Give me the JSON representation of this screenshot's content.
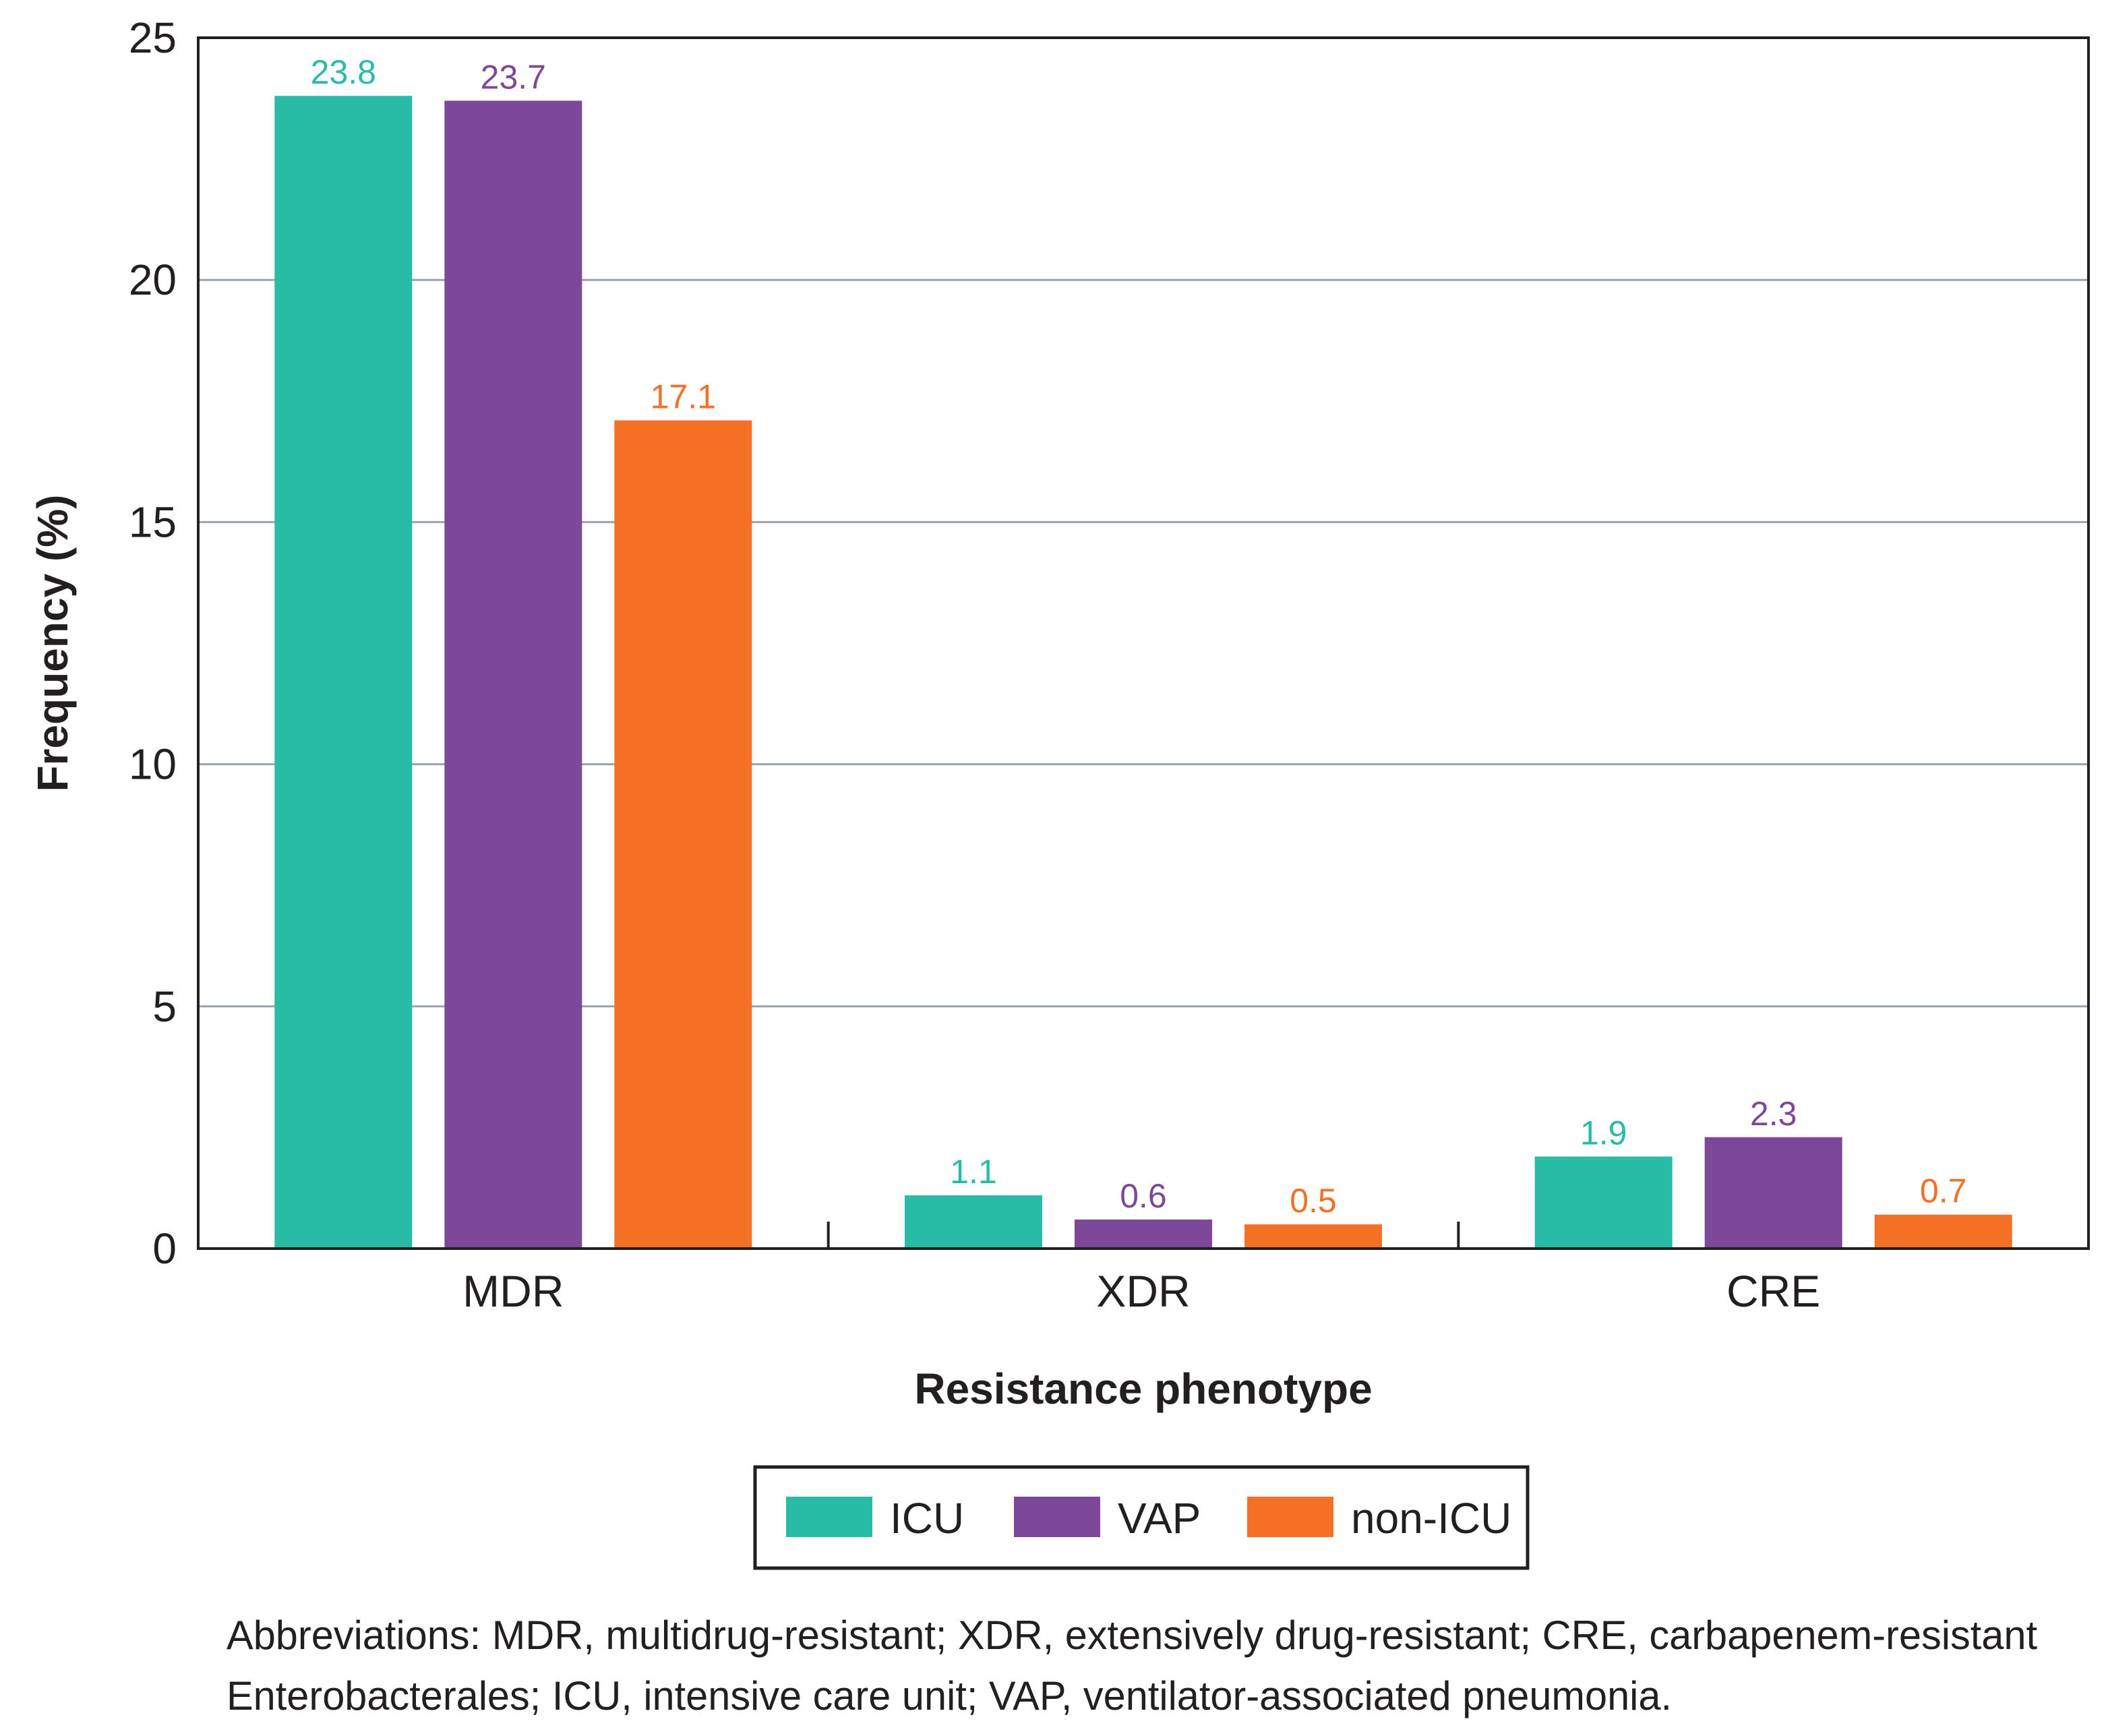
{
  "chart_data": {
    "type": "bar",
    "title": "",
    "xlabel": "Resistance phenotype",
    "ylabel": "Frequency (%)",
    "ylim": [
      0,
      25
    ],
    "yticks": [
      0,
      5,
      10,
      15,
      20,
      25
    ],
    "grid": true,
    "categories": [
      "MDR",
      "XDR",
      "CRE"
    ],
    "series": [
      {
        "name": "ICU",
        "color": "#28BBA5",
        "values": [
          23.8,
          1.1,
          1.9
        ],
        "labels": [
          "23.8",
          "1.1",
          "1.9"
        ]
      },
      {
        "name": "VAP",
        "color": "#7D4897",
        "values": [
          23.7,
          0.6,
          2.3
        ],
        "labels": [
          "23.7",
          "0.6",
          "2.3"
        ]
      },
      {
        "name": "non-ICU",
        "color": "#F37024",
        "values": [
          17.1,
          0.5,
          0.7
        ],
        "labels": [
          "17.1",
          "0.5",
          "0.7"
        ]
      }
    ],
    "legend_placement": "bottom-center",
    "footnote": [
      "Abbreviations: MDR, multidrug-resistant; XDR, extensively drug-resistant; CRE, carbapenem-resistant",
      "Enterobacterales; ICU, intensive care unit; VAP, ventilator-associated pneumonia."
    ]
  }
}
